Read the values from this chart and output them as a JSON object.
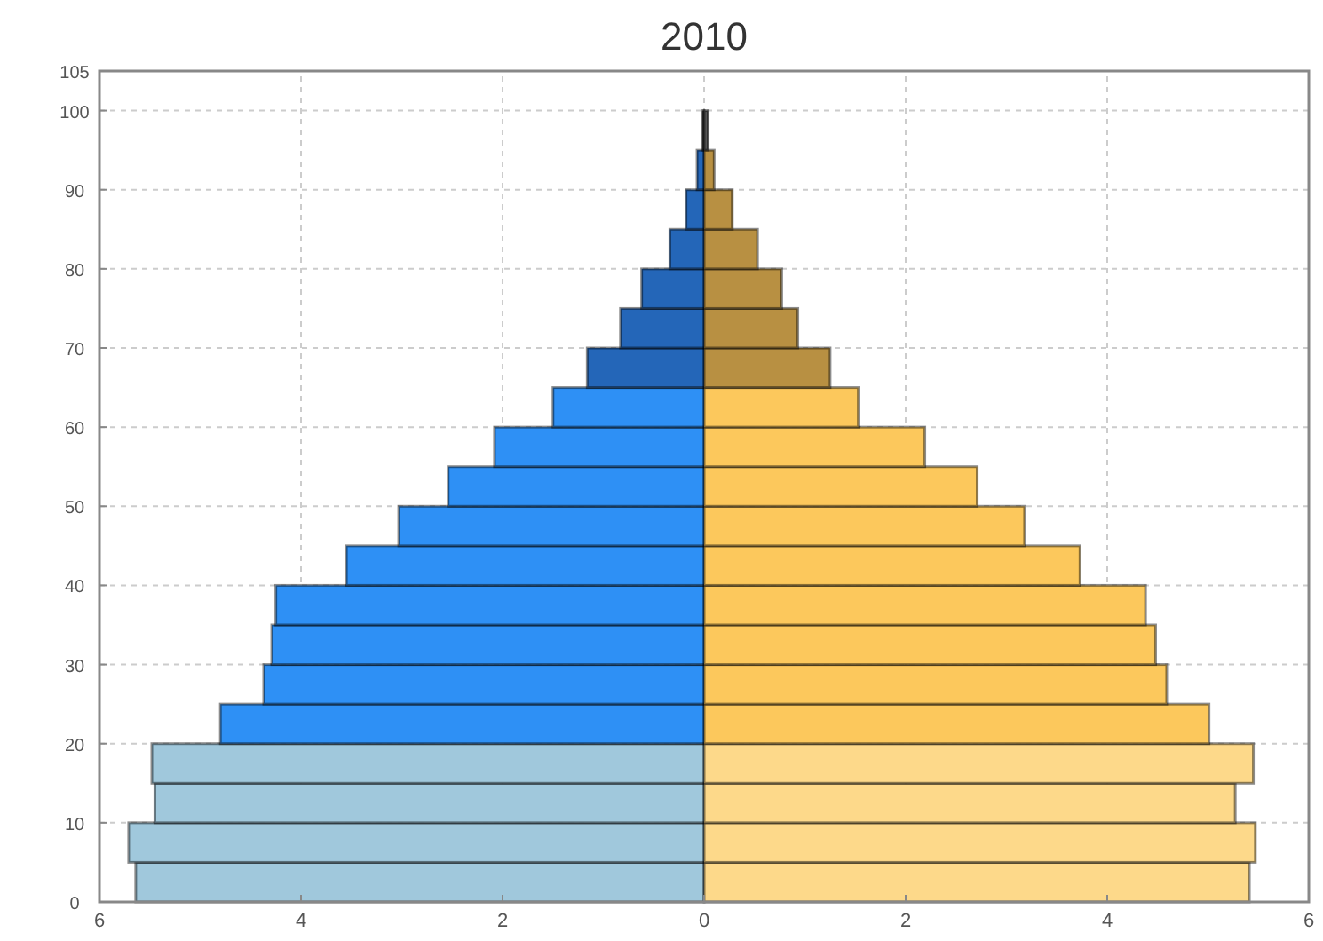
{
  "chart_data": {
    "type": "bar",
    "orientation": "horizontal",
    "stacked": true,
    "title": "2010",
    "x": [
      2.5,
      7.5,
      12.5,
      17.5,
      22.5,
      27.5,
      32.5,
      37.5,
      42.5,
      47.5,
      52.5,
      57.5,
      62.5,
      67.5,
      72.5,
      77.5,
      82.5,
      87.5,
      92.5,
      97.5
    ],
    "series": [
      {
        "values": [
          -5.64,
          -5.71,
          -5.45,
          -5.48,
          -4.8,
          -4.37,
          -4.29,
          -4.25,
          -3.55,
          -3.03,
          -2.54,
          -2.08,
          -1.5,
          -1.16,
          -0.83,
          -0.62,
          -0.34,
          -0.18,
          -0.07,
          -0.02
        ],
        "colors": [
          "#a0c8dc",
          "#a0c8dc",
          "#a0c8dc",
          "#a0c8dc",
          "#2e90f5",
          "#2e90f5",
          "#2e90f5",
          "#2e90f5",
          "#2e90f5",
          "#2e90f5",
          "#2e90f5",
          "#2e90f5",
          "#2e90f5",
          "#2466b8",
          "#2466b8",
          "#2466b8",
          "#2466b8",
          "#2466b8",
          "#2466b8",
          "#555555"
        ]
      },
      {
        "values": [
          5.41,
          5.47,
          5.27,
          5.45,
          5.01,
          4.59,
          4.48,
          4.38,
          3.73,
          3.18,
          2.71,
          2.19,
          1.53,
          1.25,
          0.93,
          0.77,
          0.53,
          0.28,
          0.1,
          0.04
        ],
        "colors": [
          "#fdd98a",
          "#fdd98a",
          "#fdd98a",
          "#fdd98a",
          "#fcc85c",
          "#fcc85c",
          "#fcc85c",
          "#fcc85c",
          "#fcc85c",
          "#fcc85c",
          "#fcc85c",
          "#fcc85c",
          "#fcc85c",
          "#b89042",
          "#b89042",
          "#b89042",
          "#b89042",
          "#b89042",
          "#b89042",
          "#555555"
        ]
      }
    ],
    "xlim": [
      -6,
      6
    ],
    "xticks": [
      {
        "value": -6,
        "label": "6"
      },
      {
        "value": -4,
        "label": "4"
      },
      {
        "value": -2,
        "label": "2"
      },
      0,
      2,
      4,
      6
    ],
    "ylim": [
      0,
      105
    ],
    "yticks": [
      0,
      10,
      20,
      30,
      40,
      50,
      60,
      70,
      80,
      90,
      100,
      105
    ],
    "grid": true
  }
}
